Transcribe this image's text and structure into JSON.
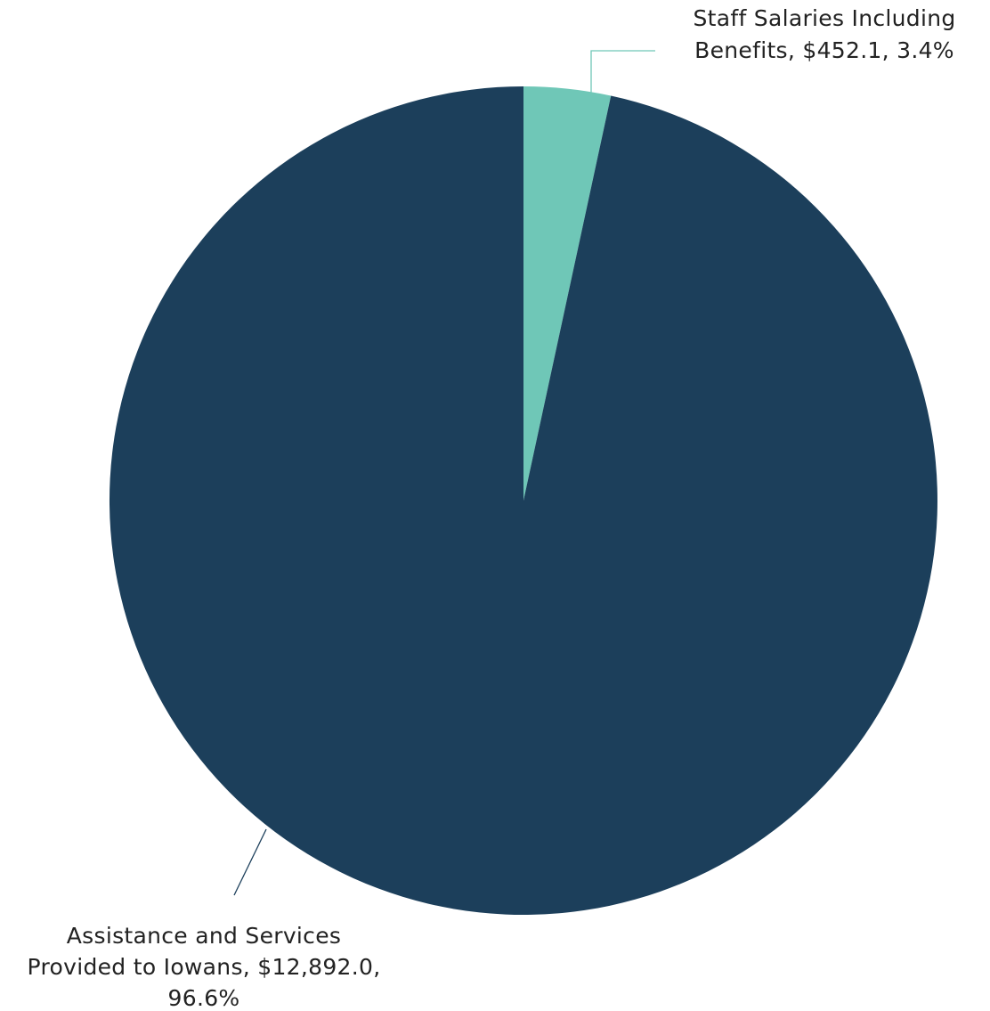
{
  "chart_data": {
    "type": "pie",
    "title": "",
    "start_angle_deg": 0,
    "direction": "clockwise",
    "slices": [
      {
        "name": "Staff Salaries Including Benefits",
        "value": 452.1,
        "percent": 3.4,
        "color": "#6fc7b7",
        "label_lines": [
          "Staff Salaries Including",
          "Benefits, $452.1, 3.4%"
        ]
      },
      {
        "name": "Assistance and Services Provided to Iowans",
        "value": 12892.0,
        "percent": 96.6,
        "color": "#1c3f5b",
        "label_lines": [
          "Assistance and Services",
          "Provided to Iowans, $12,892.0,",
          "96.6%"
        ]
      }
    ],
    "leader_line_colors": [
      "#6fc7b7",
      "#1c3f5b"
    ],
    "background": "#ffffff"
  }
}
